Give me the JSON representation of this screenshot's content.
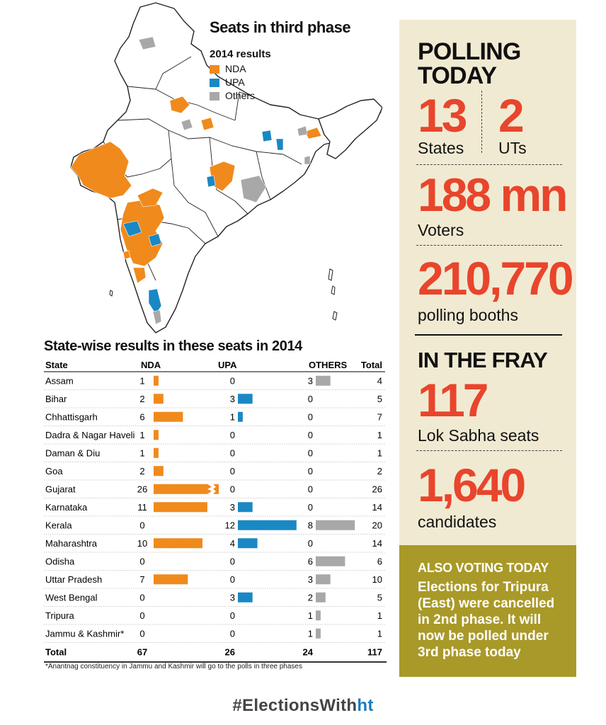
{
  "map": {
    "title": "Seats in third phase",
    "legend_title": "2014 results",
    "legend": [
      {
        "label": "NDA",
        "color": "#f08a1c"
      },
      {
        "label": "UPA",
        "color": "#1a88c4"
      },
      {
        "label": "Others",
        "color": "#a8a8a8"
      }
    ]
  },
  "table": {
    "title": "State-wise results in these seats in 2014",
    "headers": {
      "state": "State",
      "nda": "NDA",
      "upa": "UPA",
      "others": "OTHERS",
      "total": "Total"
    },
    "total_row": {
      "label": "Total",
      "nda": "67",
      "upa": "26",
      "others": "24",
      "total": "117"
    },
    "footnote": "*Anantnag constituency in Jammu and Kashmir will go to the polls in three phases"
  },
  "chart_data": {
    "type": "table",
    "title": "State-wise results in these seats in 2014",
    "columns": [
      "State",
      "NDA",
      "UPA",
      "OTHERS",
      "Total"
    ],
    "bar_note": "Gujarat NDA bar shown broken (value exceeds scale)",
    "colors": {
      "nda": "#f08a1c",
      "upa": "#1a88c4",
      "others": "#a8a8a8"
    },
    "rows": [
      {
        "state": "Assam",
        "nda": 1,
        "upa": 0,
        "others": 3,
        "total": 4
      },
      {
        "state": "Bihar",
        "nda": 2,
        "upa": 3,
        "others": 0,
        "total": 5
      },
      {
        "state": "Chhattisgarh",
        "nda": 6,
        "upa": 1,
        "others": 0,
        "total": 7
      },
      {
        "state": "Dadra & Nagar Haveli",
        "nda": 1,
        "upa": 0,
        "others": 0,
        "total": 1
      },
      {
        "state": "Daman & Diu",
        "nda": 1,
        "upa": 0,
        "others": 0,
        "total": 1
      },
      {
        "state": "Goa",
        "nda": 2,
        "upa": 0,
        "others": 0,
        "total": 2
      },
      {
        "state": "Gujarat",
        "nda": 26,
        "upa": 0,
        "others": 0,
        "total": 26
      },
      {
        "state": "Karnataka",
        "nda": 11,
        "upa": 3,
        "others": 0,
        "total": 14
      },
      {
        "state": "Kerala",
        "nda": 0,
        "upa": 12,
        "others": 8,
        "total": 20
      },
      {
        "state": "Maharashtra",
        "nda": 10,
        "upa": 4,
        "others": 0,
        "total": 14
      },
      {
        "state": "Odisha",
        "nda": 0,
        "upa": 0,
        "others": 6,
        "total": 6
      },
      {
        "state": "Uttar Pradesh",
        "nda": 7,
        "upa": 0,
        "others": 3,
        "total": 10
      },
      {
        "state": "West Bengal",
        "nda": 0,
        "upa": 3,
        "others": 2,
        "total": 5
      },
      {
        "state": "Tripura",
        "nda": 0,
        "upa": 0,
        "others": 1,
        "total": 1
      },
      {
        "state": "Jammu & Kashmir*",
        "nda": 0,
        "upa": 0,
        "others": 1,
        "total": 1
      }
    ]
  },
  "panel": {
    "polling_today": "POLLING TODAY",
    "states_value": "13",
    "states_label": "States",
    "uts_value": "2",
    "uts_label": "UTs",
    "voters_value": "188 mn",
    "voters_label": "Voters",
    "booths_value": "210,770",
    "booths_label": "polling booths",
    "in_the_fray": "IN THE FRAY",
    "seats_value": "117",
    "seats_label": "Lok Sabha seats",
    "candidates_value": "1,640",
    "candidates_label": "candidates"
  },
  "also_voting": {
    "title": "ALSO VOTING TODAY",
    "body": "Elections for Tripura (East) were cancelled in 2nd phase. It will now be polled under 3rd phase today"
  },
  "hashtag": {
    "prefix": "#ElectionsWith",
    "suffix": "ht"
  }
}
